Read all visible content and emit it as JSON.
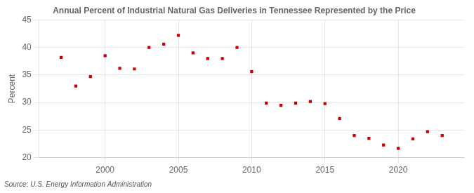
{
  "chart_data": {
    "type": "scatter",
    "title": "Annual Percent of Industrial Natural Gas Deliveries in Tennessee Represented by the Price",
    "y_label": "Percent",
    "annotations": [
      "Source: U.S. Energy Information Administration"
    ],
    "x": [
      1997,
      1998,
      1999,
      2000,
      2001,
      2002,
      2003,
      2004,
      2005,
      2006,
      2007,
      2008,
      2009,
      2010,
      2011,
      2012,
      2013,
      2014,
      2015,
      2016,
      2017,
      2018,
      2019,
      2020,
      2021,
      2022,
      2023
    ],
    "values": [
      38.2,
      33.0,
      34.7,
      38.5,
      36.2,
      36.1,
      40.0,
      40.6,
      42.2,
      39.0,
      38.0,
      38.0,
      40.0,
      35.6,
      29.9,
      29.5,
      29.9,
      30.2,
      29.8,
      27.1,
      24.0,
      23.5,
      22.3,
      21.7,
      23.4,
      24.7,
      24.0
    ],
    "color": "#cc0000",
    "marker": "square",
    "xlim": [
      1995.5,
      2024.5
    ],
    "xticks": [
      2000,
      2005,
      2010,
      2015,
      2020
    ],
    "ylim": [
      20,
      45
    ],
    "yticks": [
      20,
      25,
      30,
      35,
      40,
      45
    ],
    "grid": true
  }
}
